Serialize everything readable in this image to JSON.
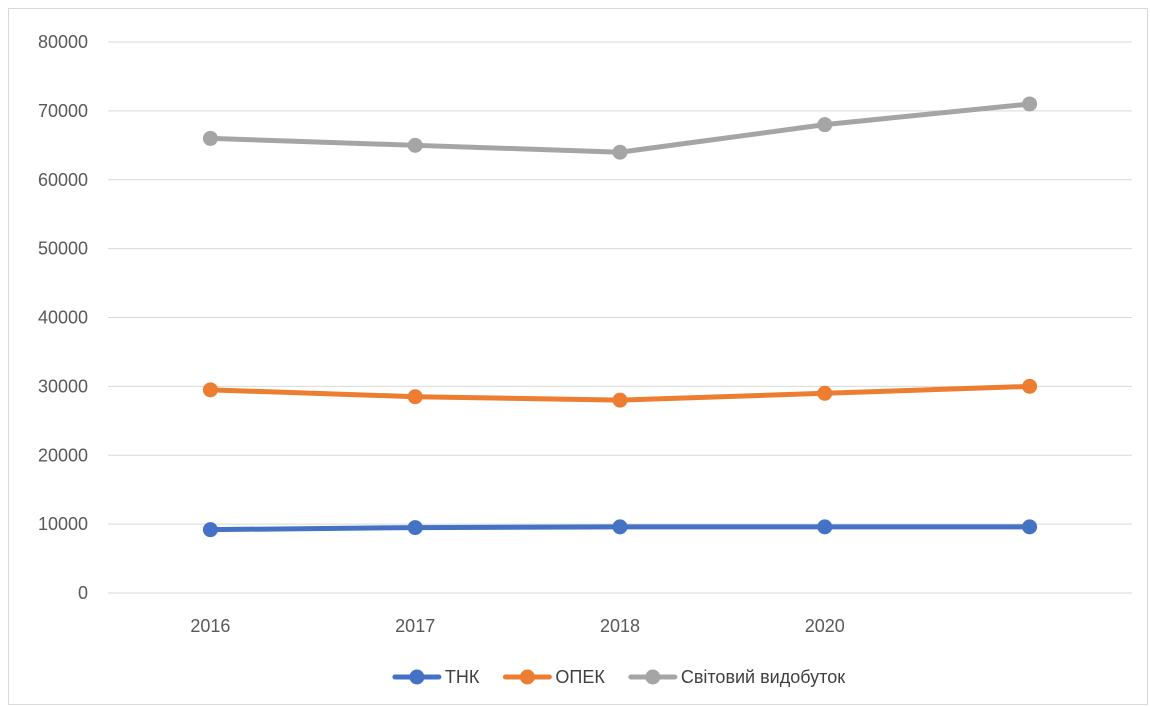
{
  "chart_data": {
    "type": "line",
    "title": "",
    "xlabel": "",
    "ylabel": "",
    "categories": [
      "2016",
      "2017",
      "2018",
      "2020",
      ""
    ],
    "ylim": [
      0,
      80000
    ],
    "y_ticks": [
      0,
      10000,
      20000,
      30000,
      40000,
      50000,
      60000,
      70000,
      80000
    ],
    "grid": true,
    "legend_position": "bottom",
    "series": [
      {
        "name": "ТНК",
        "color": "#4472c4",
        "values": [
          9200,
          9500,
          9600,
          9600,
          9600
        ]
      },
      {
        "name": "ОПЕК",
        "color": "#ed7d31",
        "values": [
          29500,
          28500,
          28000,
          29000,
          30000
        ]
      },
      {
        "name": "Світовий видобуток",
        "color": "#a5a5a5",
        "values": [
          66000,
          65000,
          64000,
          68000,
          71000
        ]
      }
    ]
  }
}
